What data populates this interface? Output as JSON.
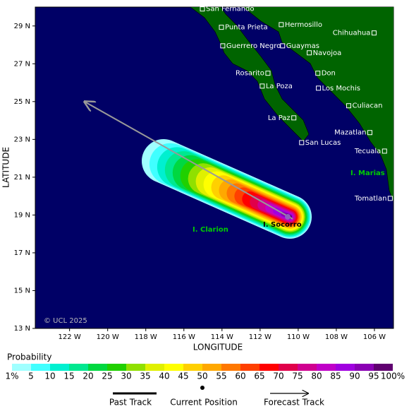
{
  "map": {
    "lon_range": [
      123.8,
      105.0
    ],
    "lat_range": [
      30,
      13
    ],
    "xlabel": "LONGITUDE",
    "ylabel": "LATITUDE",
    "lon_ticks": [
      {
        "value": 122,
        "label": "122 W"
      },
      {
        "value": 120,
        "label": "120 W"
      },
      {
        "value": 118,
        "label": "118 W"
      },
      {
        "value": 116,
        "label": "116 W"
      },
      {
        "value": 114,
        "label": "114 W"
      },
      {
        "value": 112,
        "label": "112 W"
      },
      {
        "value": 110,
        "label": "110 W"
      },
      {
        "value": 108,
        "label": "108 W"
      },
      {
        "value": 106,
        "label": "106 W"
      }
    ],
    "lat_ticks": [
      {
        "value": 13,
        "label": "13 N"
      },
      {
        "value": 15,
        "label": "15 N"
      },
      {
        "value": 17,
        "label": "17 N"
      },
      {
        "value": 19,
        "label": "19 N"
      },
      {
        "value": 21,
        "label": "21 N"
      },
      {
        "value": 23,
        "label": "23 N"
      },
      {
        "value": 25,
        "label": "25 N"
      },
      {
        "value": 27,
        "label": "27 N"
      },
      {
        "value": 29,
        "label": "29 N"
      }
    ],
    "cities": [
      {
        "name": "San Fernando",
        "lon": 115.03,
        "lat": 29.9
      },
      {
        "name": "Punta Prieta",
        "lon": 114.03,
        "lat": 28.93
      },
      {
        "name": "Hermosillo",
        "lon": 110.89,
        "lat": 29.07
      },
      {
        "name": "Chihuahua",
        "lon": 106.02,
        "lat": 28.63
      },
      {
        "name": "Guerrero Negro",
        "lon": 113.96,
        "lat": 27.95
      },
      {
        "name": "Guaymas",
        "lon": 110.82,
        "lat": 27.95
      },
      {
        "name": "Navojoa",
        "lon": 109.42,
        "lat": 27.58
      },
      {
        "name": "Rosarito",
        "lon": 111.59,
        "lat": 26.5
      },
      {
        "name": "Don",
        "lon": 108.97,
        "lat": 26.5
      },
      {
        "name": "La Poza",
        "lon": 111.89,
        "lat": 25.82
      },
      {
        "name": "Los Mochis",
        "lon": 108.94,
        "lat": 25.71
      },
      {
        "name": "Culiacan",
        "lon": 107.35,
        "lat": 24.78
      },
      {
        "name": "La Paz",
        "lon": 110.23,
        "lat": 24.14
      },
      {
        "name": "Mazatlan",
        "lon": 106.24,
        "lat": 23.36
      },
      {
        "name": "San Lucas",
        "lon": 109.82,
        "lat": 22.83
      },
      {
        "name": "Tecuala",
        "lon": 105.47,
        "lat": 22.38
      },
      {
        "name": "Tomatlan",
        "lon": 105.17,
        "lat": 19.88
      }
    ],
    "islands": [
      "I. Marias",
      "I. Clarion",
      "I. Socorro"
    ],
    "credit": "© UCL 2025"
  },
  "legend": {
    "title": "Probability",
    "labels": [
      "1%",
      "5",
      "10",
      "15",
      "20",
      "25",
      "30",
      "35",
      "40",
      "45",
      "50",
      "55",
      "60",
      "65",
      "70",
      "75",
      "80",
      "85",
      "90",
      "95",
      "100%"
    ],
    "colors": [
      "#a0ffff",
      "#40ffff",
      "#00f0d0",
      "#00e890",
      "#00d840",
      "#20d000",
      "#90e000",
      "#e0f000",
      "#ffff00",
      "#ffd000",
      "#ffa800",
      "#ff7800",
      "#ff4000",
      "#ff0000",
      "#e0004a",
      "#d00090",
      "#c000c8",
      "#a000e0",
      "#8a00b4",
      "#600070"
    ],
    "keys": [
      "Past Track",
      "Current Position",
      "Forecast Track"
    ]
  }
}
